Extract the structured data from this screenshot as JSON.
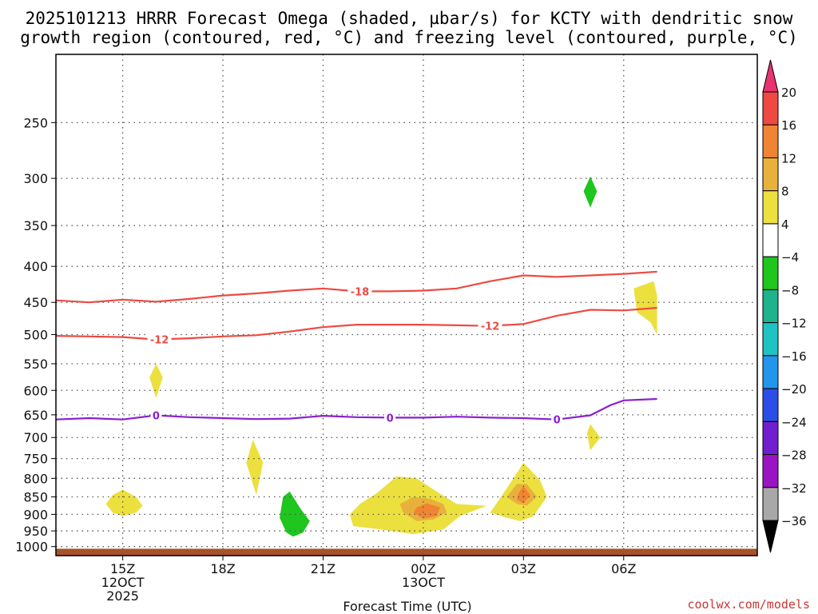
{
  "chart_data": {
    "type": "time-height cross-section",
    "title": "2025101213 HRRR Forecast Omega (shaded, µbar/s) for KCTY with dendritic snow growth region (contoured, red, °C) and freezing level (contoured, purple, °C)",
    "title_lines": [
      "2025101213 HRRR Forecast Omega (shaded, µbar/s) for KCTY with dendritic snow",
      "growth region (contoured, red, °C) and freezing level (contoured, purple, °C)"
    ],
    "xlabel": "Forecast Time (UTC)",
    "credit": "coolwx.com/models",
    "x_range_hours": [
      13,
      34
    ],
    "y_range_hpa": [
      1030,
      200
    ],
    "y_ticks": [
      "250",
      "300",
      "350",
      "400",
      "450",
      "500",
      "550",
      "600",
      "650",
      "700",
      "750",
      "800",
      "850",
      "900",
      "950",
      "1000"
    ],
    "x_ticks": [
      {
        "hour": 15,
        "lines": [
          "15Z",
          "12OCT",
          "2025"
        ]
      },
      {
        "hour": 18,
        "lines": [
          "18Z"
        ]
      },
      {
        "hour": 21,
        "lines": [
          "21Z"
        ]
      },
      {
        "hour": 24,
        "lines": [
          "00Z",
          "13OCT"
        ]
      },
      {
        "hour": 27,
        "lines": [
          "03Z"
        ]
      },
      {
        "hour": 30,
        "lines": [
          "06Z"
        ]
      }
    ],
    "colorbar_labels": [
      "20",
      "16",
      "12",
      "8",
      "4",
      "-4",
      "-8",
      "-12",
      "-16",
      "-20",
      "-24",
      "-28",
      "-32",
      "-36"
    ],
    "colorbar_colors": [
      "#e8336e",
      "#ee4a42",
      "#ef8433",
      "#e8b13b",
      "#ece03f",
      "#ffffff",
      "#1ec61e",
      "#1db38c",
      "#20c3c3",
      "#2196ec",
      "#2b4fe6",
      "#6f1fd0",
      "#9b14c4",
      "#a8a8a8",
      "#000000"
    ],
    "contours": [
      {
        "name": "isotherm-minus-18",
        "label": "-18",
        "color": "#ee4a42",
        "points": [
          [
            13,
            447
          ],
          [
            14,
            450
          ],
          [
            15,
            446
          ],
          [
            16,
            449
          ],
          [
            17,
            445
          ],
          [
            18,
            440
          ],
          [
            19,
            437
          ],
          [
            20,
            433
          ],
          [
            21,
            430
          ],
          [
            22,
            434
          ],
          [
            23,
            434
          ],
          [
            24,
            433
          ],
          [
            25,
            430
          ],
          [
            26,
            420
          ],
          [
            27,
            412
          ],
          [
            28,
            414
          ],
          [
            29,
            412
          ],
          [
            30,
            410
          ],
          [
            31,
            407
          ]
        ],
        "label_hour": 22.1
      },
      {
        "name": "isotherm-minus-12",
        "label": "-12",
        "color": "#ee4a42",
        "points": [
          [
            13,
            502
          ],
          [
            14,
            503
          ],
          [
            15,
            504
          ],
          [
            16,
            508
          ],
          [
            17,
            506
          ],
          [
            18,
            503
          ],
          [
            19,
            501
          ],
          [
            20,
            495
          ],
          [
            21,
            488
          ],
          [
            22,
            484
          ],
          [
            23,
            484
          ],
          [
            24,
            484
          ],
          [
            25,
            485
          ],
          [
            26,
            486
          ],
          [
            27,
            483
          ],
          [
            28,
            470
          ],
          [
            29,
            461
          ],
          [
            30,
            462
          ],
          [
            31,
            458
          ]
        ],
        "label_hour": 16.1
      },
      {
        "name": "isotherm-minus-12-b",
        "label": "-12",
        "color": "#ee4a42",
        "points": [],
        "label_hour": 26.0
      },
      {
        "name": "freezing-level",
        "label": "0",
        "color": "#8b1fd0",
        "points": [
          [
            13,
            660
          ],
          [
            14,
            657
          ],
          [
            15,
            660
          ],
          [
            16,
            651
          ],
          [
            17,
            655
          ],
          [
            18,
            657
          ],
          [
            19,
            659
          ],
          [
            20,
            658
          ],
          [
            21,
            652
          ],
          [
            22,
            655
          ],
          [
            23,
            656
          ],
          [
            24,
            656
          ],
          [
            25,
            654
          ],
          [
            26,
            656
          ],
          [
            27,
            657
          ],
          [
            28,
            660
          ],
          [
            29,
            651
          ],
          [
            29.6,
            630
          ],
          [
            30,
            620
          ],
          [
            31,
            617
          ]
        ],
        "label_hour": 16.0
      }
    ],
    "contour_extra_labels": [
      {
        "label": "0",
        "hour": 23.0,
        "color": "#8b1fd0"
      },
      {
        "label": "0",
        "hour": 28.0,
        "color": "#8b1fd0"
      }
    ],
    "omega_blobs": [
      {
        "name": "omega-plus-4-14z",
        "value": "4",
        "color": "#ece03f",
        "points": [
          [
            14.5,
            870
          ],
          [
            14.7,
            845
          ],
          [
            15.0,
            830
          ],
          [
            15.4,
            850
          ],
          [
            15.6,
            875
          ],
          [
            15.4,
            895
          ],
          [
            15.0,
            905
          ],
          [
            14.7,
            895
          ]
        ]
      },
      {
        "name": "omega-plus-4-16z",
        "value": "4",
        "color": "#ece03f",
        "points": [
          [
            15.8,
            575
          ],
          [
            16.0,
            550
          ],
          [
            16.2,
            575
          ],
          [
            16.0,
            615
          ]
        ]
      },
      {
        "name": "omega-plus-4-19z",
        "value": "4",
        "color": "#ece03f",
        "points": [
          [
            18.7,
            760
          ],
          [
            18.9,
            705
          ],
          [
            19.2,
            760
          ],
          [
            19.0,
            845
          ]
        ]
      },
      {
        "name": "omega-minus-8-20z",
        "value": "-8",
        "color": "#1ec61e",
        "points": [
          [
            19.7,
            910
          ],
          [
            19.8,
            850
          ],
          [
            20.0,
            835
          ],
          [
            20.3,
            880
          ],
          [
            20.6,
            920
          ],
          [
            20.4,
            955
          ],
          [
            20.1,
            968
          ],
          [
            19.9,
            955
          ]
        ]
      },
      {
        "name": "omega-plus-4-00z",
        "value": "4",
        "color": "#ece03f",
        "points": [
          [
            21.8,
            900
          ],
          [
            22.1,
            870
          ],
          [
            22.6,
            840
          ],
          [
            23.2,
            795
          ],
          [
            23.8,
            800
          ],
          [
            24.4,
            835
          ],
          [
            25.0,
            870
          ],
          [
            25.9,
            875
          ],
          [
            25.1,
            905
          ],
          [
            24.6,
            945
          ],
          [
            23.7,
            960
          ],
          [
            22.7,
            945
          ],
          [
            21.9,
            935
          ]
        ]
      },
      {
        "name": "omega-plus-8-00z",
        "value": "8",
        "color": "#e8b13b",
        "points": [
          [
            23.3,
            870
          ],
          [
            23.7,
            850
          ],
          [
            24.2,
            855
          ],
          [
            24.6,
            870
          ],
          [
            24.7,
            895
          ],
          [
            24.3,
            915
          ],
          [
            23.8,
            920
          ],
          [
            23.4,
            895
          ]
        ]
      },
      {
        "name": "omega-plus-12-00z",
        "value": "12",
        "color": "#ef8433",
        "points": [
          [
            23.8,
            880
          ],
          [
            24.1,
            868
          ],
          [
            24.5,
            880
          ],
          [
            24.4,
            905
          ],
          [
            24.0,
            912
          ],
          [
            23.7,
            895
          ]
        ]
      },
      {
        "name": "omega-plus-4-03z",
        "value": "4",
        "color": "#ece03f",
        "points": [
          [
            26.0,
            895
          ],
          [
            26.4,
            840
          ],
          [
            26.7,
            800
          ],
          [
            27.0,
            760
          ],
          [
            27.5,
            805
          ],
          [
            27.7,
            850
          ],
          [
            27.3,
            905
          ],
          [
            26.9,
            920
          ],
          [
            26.5,
            910
          ]
        ]
      },
      {
        "name": "omega-plus-8-03z",
        "value": "8",
        "color": "#e8b13b",
        "points": [
          [
            26.5,
            850
          ],
          [
            26.8,
            815
          ],
          [
            27.1,
            815
          ],
          [
            27.4,
            850
          ],
          [
            27.1,
            875
          ],
          [
            26.8,
            870
          ]
        ]
      },
      {
        "name": "omega-plus-12-03z",
        "value": "12",
        "color": "#ef8433",
        "points": [
          [
            26.85,
            840
          ],
          [
            27.0,
            820
          ],
          [
            27.2,
            845
          ],
          [
            27.0,
            868
          ],
          [
            26.8,
            858
          ]
        ]
      },
      {
        "name": "omega-minus-8-05z",
        "value": "-8",
        "color": "#1ec61e",
        "points": [
          [
            28.8,
            313
          ],
          [
            29.0,
            298
          ],
          [
            29.2,
            313
          ],
          [
            29.0,
            330
          ]
        ]
      },
      {
        "name": "omega-plus-4-05z",
        "value": "4",
        "color": "#ece03f",
        "points": [
          [
            28.9,
            690
          ],
          [
            29.0,
            670
          ],
          [
            29.3,
            700
          ],
          [
            29.0,
            730
          ]
        ]
      },
      {
        "name": "omega-plus-4-07z",
        "value": "4",
        "color": "#ece03f",
        "points": [
          [
            30.3,
            430
          ],
          [
            30.9,
            420
          ],
          [
            31,
            440
          ],
          [
            31,
            500
          ],
          [
            30.8,
            480
          ],
          [
            30.4,
            465
          ]
        ]
      }
    ],
    "ground": {
      "value": "terrain",
      "color": "#a6532a",
      "top_hpa": 1007
    }
  }
}
